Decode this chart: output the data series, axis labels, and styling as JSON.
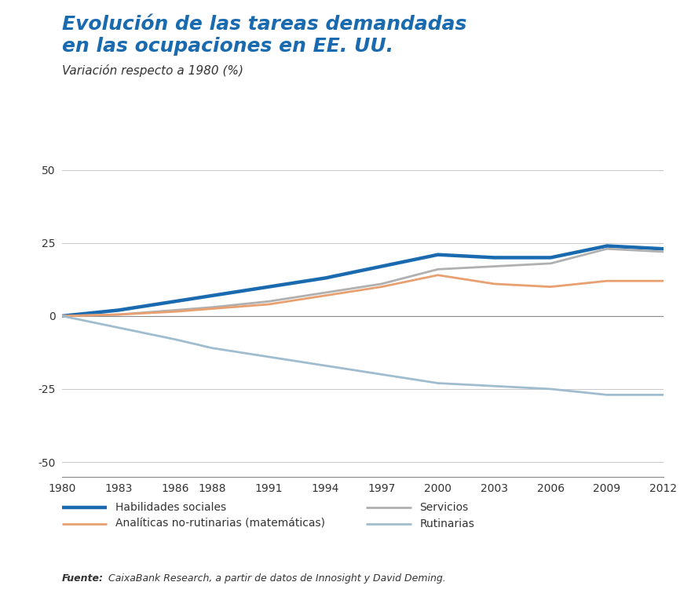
{
  "title_line1": "Evolución de las tareas demandadas",
  "title_line2": "en las ocupaciones en EE. UU.",
  "subtitle": "Variación respecto a 1980 (%)",
  "ylim": [
    -55,
    58
  ],
  "yticks": [
    -50,
    -25,
    0,
    25,
    50
  ],
  "x_years": [
    1980,
    1983,
    1986,
    1988,
    1991,
    1994,
    1997,
    2000,
    2003,
    2006,
    2009,
    2012
  ],
  "series": {
    "habilidades_sociales": {
      "label": "Habilidades sociales",
      "color": "#1a6aaf",
      "linewidth": 3.2,
      "values": [
        0,
        2,
        5,
        7,
        10,
        13,
        17,
        21,
        20,
        20,
        24,
        23
      ]
    },
    "servicios": {
      "label": "Servicios",
      "color": "#b0b0b0",
      "linewidth": 2.0,
      "values": [
        0,
        0.5,
        2,
        3,
        5,
        8,
        11,
        16,
        17,
        18,
        23,
        22
      ]
    },
    "analiticas": {
      "label": "Analíticas no-rutinarias (matemáticas)",
      "color": "#e8a070",
      "linewidth": 2.0,
      "values": [
        0,
        0.5,
        1.5,
        2.5,
        4,
        7,
        10,
        14,
        11,
        10,
        12,
        12
      ]
    },
    "rutinarias": {
      "label": "Rutinarias",
      "color": "#a0bdd0",
      "linewidth": 2.0,
      "values": [
        0,
        -4,
        -8,
        -11,
        -14,
        -17,
        -20,
        -23,
        -24,
        -25,
        -27,
        -27
      ]
    }
  },
  "source_bold": "Fuente:",
  "source_italic": " CaixaBank Research, a partir de datos de Innosight y David Deming.",
  "background_color": "#ffffff",
  "grid_color": "#c8c8c8",
  "title_color": "#1a6aaf",
  "text_color": "#333333"
}
